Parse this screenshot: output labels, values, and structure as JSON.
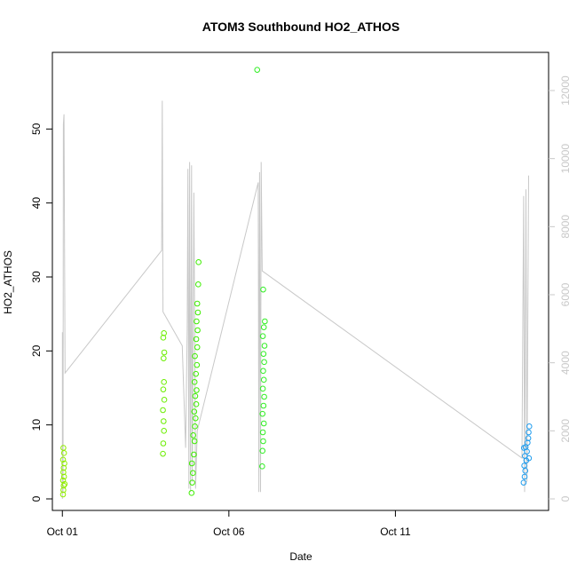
{
  "chart_data": {
    "type": "scatter",
    "title": "ATOM3 Southbound HO2_ATHOS",
    "xlabel": "Date",
    "ylabel": "HO2_ATHOS",
    "x_ticks": [
      "Oct 01",
      "Oct 06",
      "Oct 11"
    ],
    "xlim_days": [
      0.7,
      15.6
    ],
    "x_tick_days": [
      1,
      6,
      11
    ],
    "ylim": [
      0,
      60
    ],
    "y_ticks": [
      0,
      10,
      20,
      30,
      40,
      50
    ],
    "y2lim": [
      0,
      12000
    ],
    "y2_ticks": [
      0,
      2000,
      4000,
      6000,
      8000,
      10000,
      12000
    ],
    "grid": false,
    "series": [
      {
        "role": "HO2_ATHOS points",
        "color_note": "colored by time: yellow-green early, green mid, blue late",
        "points": [
          {
            "day": 1.02,
            "y": 0.6,
            "color": "#90ee00"
          },
          {
            "day": 1.03,
            "y": 1.2,
            "color": "#90ee00"
          },
          {
            "day": 1.04,
            "y": 1.8,
            "color": "#90ee00"
          },
          {
            "day": 1.02,
            "y": 2.5,
            "color": "#90ee00"
          },
          {
            "day": 1.05,
            "y": 3.0,
            "color": "#90ee00"
          },
          {
            "day": 1.03,
            "y": 3.6,
            "color": "#90ee00"
          },
          {
            "day": 1.04,
            "y": 4.2,
            "color": "#90ee00"
          },
          {
            "day": 1.06,
            "y": 4.8,
            "color": "#90ee00"
          },
          {
            "day": 1.02,
            "y": 5.3,
            "color": "#90ee00"
          },
          {
            "day": 1.05,
            "y": 6.2,
            "color": "#90ee00"
          },
          {
            "day": 1.03,
            "y": 6.9,
            "color": "#90ee00"
          },
          {
            "day": 1.07,
            "y": 2.0,
            "color": "#90ee00"
          },
          {
            "day": 4.02,
            "y": 6.1,
            "color": "#6bee00"
          },
          {
            "day": 4.03,
            "y": 7.5,
            "color": "#6bee00"
          },
          {
            "day": 4.05,
            "y": 9.2,
            "color": "#6bee00"
          },
          {
            "day": 4.04,
            "y": 10.5,
            "color": "#6bee00"
          },
          {
            "day": 4.02,
            "y": 12.0,
            "color": "#6bee00"
          },
          {
            "day": 4.06,
            "y": 13.4,
            "color": "#6bee00"
          },
          {
            "day": 4.03,
            "y": 14.8,
            "color": "#6bee00"
          },
          {
            "day": 4.05,
            "y": 15.8,
            "color": "#6bee00"
          },
          {
            "day": 4.04,
            "y": 19.0,
            "color": "#6bee00"
          },
          {
            "day": 4.06,
            "y": 19.8,
            "color": "#6bee00"
          },
          {
            "day": 4.03,
            "y": 21.8,
            "color": "#6bee00"
          },
          {
            "day": 4.05,
            "y": 22.4,
            "color": "#6bee00"
          },
          {
            "day": 4.88,
            "y": 0.8,
            "color": "#3eee00"
          },
          {
            "day": 4.9,
            "y": 2.2,
            "color": "#3eee00"
          },
          {
            "day": 4.92,
            "y": 3.5,
            "color": "#3eee00"
          },
          {
            "day": 4.89,
            "y": 4.8,
            "color": "#3eee00"
          },
          {
            "day": 4.95,
            "y": 6.0,
            "color": "#3eee00"
          },
          {
            "day": 4.97,
            "y": 7.8,
            "color": "#3eee00"
          },
          {
            "day": 4.93,
            "y": 8.6,
            "color": "#3eee00"
          },
          {
            "day": 4.98,
            "y": 9.8,
            "color": "#3eee00"
          },
          {
            "day": 5.0,
            "y": 10.9,
            "color": "#3eee00"
          },
          {
            "day": 4.96,
            "y": 11.8,
            "color": "#3eee00"
          },
          {
            "day": 5.02,
            "y": 12.8,
            "color": "#3eee00"
          },
          {
            "day": 4.99,
            "y": 13.9,
            "color": "#3eee00"
          },
          {
            "day": 5.03,
            "y": 14.7,
            "color": "#3eee00"
          },
          {
            "day": 4.97,
            "y": 15.8,
            "color": "#3eee00"
          },
          {
            "day": 5.01,
            "y": 16.9,
            "color": "#3eee00"
          },
          {
            "day": 5.04,
            "y": 18.1,
            "color": "#3eee00"
          },
          {
            "day": 4.98,
            "y": 19.3,
            "color": "#3eee00"
          },
          {
            "day": 5.05,
            "y": 20.5,
            "color": "#3eee00"
          },
          {
            "day": 5.02,
            "y": 21.6,
            "color": "#3eee00"
          },
          {
            "day": 5.06,
            "y": 22.8,
            "color": "#3eee00"
          },
          {
            "day": 5.03,
            "y": 24.0,
            "color": "#3eee00"
          },
          {
            "day": 5.07,
            "y": 25.2,
            "color": "#3eee00"
          },
          {
            "day": 5.05,
            "y": 26.4,
            "color": "#3eee00"
          },
          {
            "day": 5.08,
            "y": 29.0,
            "color": "#3eee00"
          },
          {
            "day": 5.09,
            "y": 32.0,
            "color": "#3eee00"
          },
          {
            "day": 7.0,
            "y": 4.4,
            "color": "#2fee22"
          },
          {
            "day": 7.01,
            "y": 6.5,
            "color": "#2fee22"
          },
          {
            "day": 7.03,
            "y": 7.8,
            "color": "#2fee22"
          },
          {
            "day": 7.02,
            "y": 9.0,
            "color": "#2fee22"
          },
          {
            "day": 7.05,
            "y": 10.2,
            "color": "#2fee22"
          },
          {
            "day": 7.01,
            "y": 11.5,
            "color": "#2fee22"
          },
          {
            "day": 7.04,
            "y": 12.6,
            "color": "#2fee22"
          },
          {
            "day": 7.06,
            "y": 13.8,
            "color": "#2fee22"
          },
          {
            "day": 7.02,
            "y": 14.9,
            "color": "#2fee22"
          },
          {
            "day": 7.05,
            "y": 16.1,
            "color": "#2fee22"
          },
          {
            "day": 7.03,
            "y": 17.3,
            "color": "#2fee22"
          },
          {
            "day": 7.06,
            "y": 18.5,
            "color": "#2fee22"
          },
          {
            "day": 7.04,
            "y": 19.6,
            "color": "#2fee22"
          },
          {
            "day": 7.07,
            "y": 20.7,
            "color": "#2fee22"
          },
          {
            "day": 7.02,
            "y": 22.0,
            "color": "#2fee22"
          },
          {
            "day": 7.05,
            "y": 23.2,
            "color": "#2fee22"
          },
          {
            "day": 7.08,
            "y": 24.0,
            "color": "#2fee22"
          },
          {
            "day": 7.03,
            "y": 28.3,
            "color": "#2fee22"
          },
          {
            "day": 6.85,
            "y": 58.0,
            "color": "#2fee22"
          },
          {
            "day": 14.85,
            "y": 2.2,
            "color": "#1e9cee"
          },
          {
            "day": 14.88,
            "y": 3.0,
            "color": "#1e9cee"
          },
          {
            "day": 14.9,
            "y": 3.8,
            "color": "#1e9cee"
          },
          {
            "day": 14.87,
            "y": 4.5,
            "color": "#1e9cee"
          },
          {
            "day": 14.93,
            "y": 5.2,
            "color": "#1e9cee"
          },
          {
            "day": 14.89,
            "y": 5.8,
            "color": "#1e9cee"
          },
          {
            "day": 14.95,
            "y": 6.4,
            "color": "#1e9cee"
          },
          {
            "day": 14.91,
            "y": 7.0,
            "color": "#1e9cee"
          },
          {
            "day": 14.97,
            "y": 7.6,
            "color": "#1e9cee"
          },
          {
            "day": 14.99,
            "y": 8.2,
            "color": "#1e9cee"
          },
          {
            "day": 15.0,
            "y": 9.0,
            "color": "#1e9cee"
          },
          {
            "day": 15.02,
            "y": 9.8,
            "color": "#1e9cee"
          },
          {
            "day": 14.86,
            "y": 6.9,
            "color": "#1e9cee"
          },
          {
            "day": 15.01,
            "y": 5.5,
            "color": "#1e9cee"
          }
        ]
      },
      {
        "role": "secondary axis line",
        "color": "#c8c8c8",
        "points": [
          {
            "day": 1.0,
            "y2": 0
          },
          {
            "day": 1.0,
            "y2": 4900
          },
          {
            "day": 1.02,
            "y2": 200
          },
          {
            "day": 1.03,
            "y2": 11000
          },
          {
            "day": 1.05,
            "y2": 11300
          },
          {
            "day": 1.08,
            "y2": 3700
          },
          {
            "day": 3.98,
            "y2": 7300
          },
          {
            "day": 4.0,
            "y2": 11700
          },
          {
            "day": 4.02,
            "y2": 5500
          },
          {
            "day": 4.6,
            "y2": 4500
          },
          {
            "day": 4.7,
            "y2": 1500
          },
          {
            "day": 4.75,
            "y2": 5000
          },
          {
            "day": 4.77,
            "y2": 9700
          },
          {
            "day": 4.8,
            "y2": 300
          },
          {
            "day": 4.82,
            "y2": 9900
          },
          {
            "day": 4.85,
            "y2": 200
          },
          {
            "day": 4.88,
            "y2": 9800
          },
          {
            "day": 4.9,
            "y2": 500
          },
          {
            "day": 4.95,
            "y2": 9000
          },
          {
            "day": 5.0,
            "y2": 300
          },
          {
            "day": 5.05,
            "y2": 2000
          },
          {
            "day": 6.88,
            "y2": 9300
          },
          {
            "day": 6.9,
            "y2": 200
          },
          {
            "day": 6.92,
            "y2": 9600
          },
          {
            "day": 6.95,
            "y2": 200
          },
          {
            "day": 6.97,
            "y2": 9900
          },
          {
            "day": 7.0,
            "y2": 6700
          },
          {
            "day": 14.8,
            "y2": 1200
          },
          {
            "day": 14.85,
            "y2": 8900
          },
          {
            "day": 14.88,
            "y2": 200
          },
          {
            "day": 14.92,
            "y2": 9100
          },
          {
            "day": 14.95,
            "y2": 500
          },
          {
            "day": 15.0,
            "y2": 9500
          }
        ]
      }
    ]
  }
}
